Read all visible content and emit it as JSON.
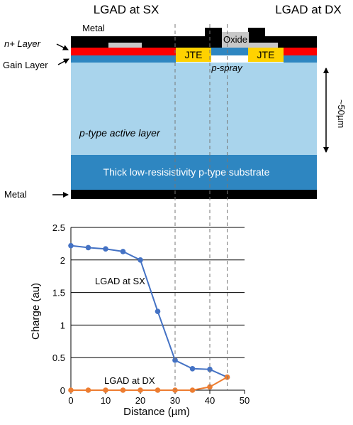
{
  "diagram": {
    "header_left": "LGAD at SX",
    "header_right": "LGAD at DX",
    "label_metal_top": "Metal",
    "label_oxide": "Oxide",
    "label_n_layer": "n+ Layer",
    "label_gain_layer": "Gain Layer",
    "label_jte": "JTE",
    "label_pspray": "p-spray",
    "label_active": "p-type active layer",
    "label_substrate": "Thick low-resisistivity p-type substrate",
    "label_metal_bottom": "Metal",
    "label_thickness": "~50µm",
    "colors": {
      "metal": "#000000",
      "oxide": "#c8c8c8",
      "n_layer": "#ff0000",
      "gain_layer": "#2e86c1",
      "jte": "#ffd200",
      "active_layer": "#a9d4ec",
      "substrate": "#2e86c1"
    }
  },
  "chart_data": {
    "type": "line",
    "xlabel": "Distance (µm)",
    "ylabel": "Charge (au)",
    "xlim": [
      0,
      50
    ],
    "ylim": [
      0,
      2.5
    ],
    "xticks": [
      0,
      10,
      20,
      30,
      40,
      50
    ],
    "yticks": [
      0,
      0.5,
      1,
      1.5,
      2,
      2.5
    ],
    "grid": "horizontal",
    "series": [
      {
        "name": "LGAD at SX",
        "color": "#4472c4",
        "x": [
          0,
          5,
          10,
          15,
          20,
          25,
          30,
          35,
          40,
          45
        ],
        "y": [
          2.22,
          2.19,
          2.17,
          2.13,
          2.0,
          1.21,
          0.46,
          0.33,
          0.32,
          0.2
        ]
      },
      {
        "name": "LGAD at DX",
        "color": "#ed7d31",
        "x": [
          0,
          5,
          10,
          15,
          20,
          25,
          30,
          35,
          40,
          45
        ],
        "y": [
          0.0,
          0.0,
          0.0,
          0.0,
          0.0,
          0.0,
          0.0,
          0.0,
          0.05,
          0.2
        ]
      }
    ],
    "annotations": [
      "LGAD at SX",
      "LGAD at DX"
    ]
  }
}
